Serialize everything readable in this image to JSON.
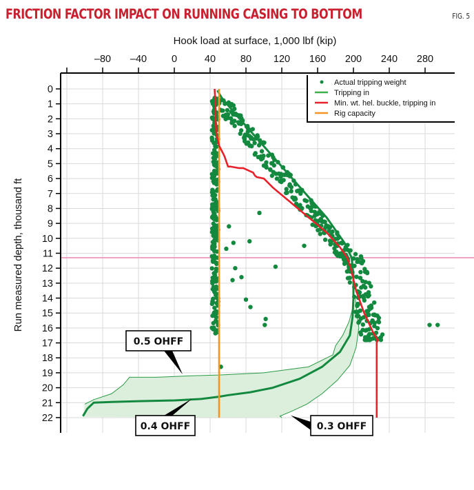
{
  "header": {
    "title": "FRICTION FACTOR IMPACT ON RUNNING CASING TO BOTTOM",
    "figure_label": "FIG. 5"
  },
  "colors": {
    "title": "#c8202f",
    "actual_points": "#13893f",
    "tripping_in": "#13893f",
    "band_fill": "#dcefdc",
    "band_edge": "#2a9a44",
    "min_buckle": "#e8202a",
    "rig_capacity": "#f39423",
    "reference_line": "#ee8cbc",
    "grid": "#d9d9d9"
  },
  "chart_data": {
    "type": "scatter",
    "title": "FRICTION FACTOR IMPACT ON RUNNING CASING TO BOTTOM",
    "xlabel": "Hook load at surface, 1,000 lbf (kip)",
    "ylabel": "Run measured depth, thousand ft",
    "xlim": [
      -120,
      320
    ],
    "ylim": [
      22,
      0
    ],
    "x_axis_position": "top",
    "y_inverted": true,
    "x_ticks": [
      -120,
      -80,
      -40,
      0,
      40,
      80,
      120,
      160,
      200,
      240,
      280
    ],
    "x_tick_labels": [
      "",
      "–80",
      "–40",
      "0",
      "40",
      "80",
      "120",
      "160",
      "200",
      "240",
      "280"
    ],
    "y_ticks": [
      0,
      1,
      2,
      3,
      4,
      5,
      6,
      7,
      8,
      9,
      10,
      11,
      12,
      13,
      14,
      15,
      16,
      17,
      18,
      19,
      20,
      21,
      22
    ],
    "grid": true,
    "legend": {
      "position": "top-right",
      "entries": [
        {
          "label": "Actual tripping weight",
          "type": "marker",
          "color": "#13893f"
        },
        {
          "label": "Tripping in",
          "type": "line",
          "color": "#3cb04a"
        },
        {
          "label": "Min. wt. hel. buckle, tripping in",
          "type": "line",
          "color": "#e8202a"
        },
        {
          "label": "Rig capacity",
          "type": "line",
          "color": "#f39423"
        }
      ]
    },
    "series": [
      {
        "name": "Rig capacity",
        "type": "line",
        "x": [
          50,
          50
        ],
        "y": [
          0,
          22
        ]
      },
      {
        "name": "Min. wt. hel. buckle, tripping in",
        "type": "line",
        "x": [
          45,
          46,
          46,
          47,
          50,
          56,
          60,
          63,
          72,
          77,
          88,
          90,
          92,
          100,
          110,
          130,
          150,
          170,
          185,
          193,
          197,
          203,
          212,
          222,
          227,
          226,
          226
        ],
        "y": [
          0,
          1,
          2,
          3,
          3.8,
          4.5,
          5.2,
          5.2,
          5.3,
          5.3,
          5.6,
          5.8,
          5.9,
          6.0,
          6.6,
          7.6,
          8.6,
          9.6,
          10.6,
          11.3,
          12.0,
          13.5,
          15.0,
          16.3,
          16.8,
          17.0,
          22.0
        ]
      },
      {
        "name": "Tripping in (0.4 OHFF)",
        "type": "line",
        "x": [
          48,
          53,
          70,
          95,
          120,
          145,
          170,
          190,
          198,
          200,
          200,
          199,
          196,
          185,
          165,
          140,
          110,
          85,
          60,
          50,
          30,
          0,
          -40,
          -70,
          -90,
          -97,
          -102
        ],
        "y": [
          0.1,
          0.6,
          1.8,
          3.5,
          5.2,
          6.9,
          8.6,
          10.3,
          11.3,
          12.5,
          14.0,
          15.3,
          16.5,
          17.6,
          18.6,
          19.4,
          20.0,
          20.3,
          20.5,
          20.6,
          20.75,
          20.85,
          20.9,
          20.95,
          21.0,
          21.4,
          21.9
        ]
      },
      {
        "name": "0.5 OHFF (band upper edge)",
        "type": "line",
        "x": [
          200,
          195,
          188,
          180,
          177,
          150,
          100,
          50,
          20,
          -20,
          -50,
          -57,
          -70,
          -90,
          -100
        ],
        "y": [
          14.5,
          15.6,
          16.5,
          17.2,
          17.8,
          18.6,
          19.0,
          19.15,
          19.2,
          19.3,
          19.3,
          19.8,
          20.4,
          20.8,
          21.1
        ]
      },
      {
        "name": "0.3 OHFF (band lower edge)",
        "type": "line",
        "x": [
          202,
          206,
          203,
          196,
          182,
          165,
          148,
          130,
          118,
          120
        ],
        "y": [
          14.0,
          16.0,
          17.3,
          18.5,
          19.5,
          20.4,
          21.1,
          21.6,
          21.9,
          22.0
        ]
      },
      {
        "name": "Reference depth line",
        "type": "hline",
        "y": 11.3
      },
      {
        "name": "Actual tripping weight",
        "type": "scatter",
        "clusters": [
          {
            "region": "slack-off column",
            "x_range": [
              40,
              50
            ],
            "y_range": [
              0.6,
              16.8
            ]
          },
          {
            "region": "pickup trend",
            "from": [
              50,
              0.7
            ],
            "to": [
              195,
              11.3
            ],
            "spread_kip": 10
          },
          {
            "region": "bottom cluster",
            "x_range": [
              190,
              240
            ],
            "y_range": [
              11.2,
              16.9
            ]
          }
        ],
        "outliers": [
          {
            "x": 62,
            "y": 1.1
          },
          {
            "x": 66,
            "y": 1.1
          },
          {
            "x": 61,
            "y": 9.2
          },
          {
            "x": 58,
            "y": 10.7
          },
          {
            "x": 66,
            "y": 10.3
          },
          {
            "x": 95,
            "y": 8.3
          },
          {
            "x": 84,
            "y": 10.2
          },
          {
            "x": 80,
            "y": 14.1
          },
          {
            "x": 85,
            "y": 14.6
          },
          {
            "x": 68,
            "y": 12.0
          },
          {
            "x": 65,
            "y": 12.8
          },
          {
            "x": 75,
            "y": 12.6
          },
          {
            "x": 101,
            "y": 15.8
          },
          {
            "x": 294,
            "y": 15.8
          },
          {
            "x": 285,
            "y": 15.8
          },
          {
            "x": 52,
            "y": 18.6
          },
          {
            "x": 145,
            "y": 10.5
          },
          {
            "x": 113,
            "y": 11.9
          },
          {
            "x": 102,
            "y": 15.4
          }
        ]
      }
    ],
    "annotations": [
      {
        "text": "0.5 OHFF",
        "points_to": [
          0,
          19.1
        ]
      },
      {
        "text": "0.4 OHFF",
        "points_to": [
          20,
          20.7
        ]
      },
      {
        "text": "0.3 OHFF",
        "points_to": [
          130,
          21.8
        ]
      }
    ]
  }
}
